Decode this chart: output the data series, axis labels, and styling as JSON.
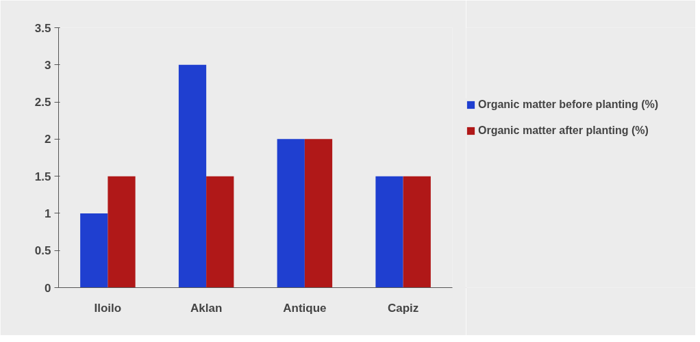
{
  "chart_data": {
    "type": "bar",
    "categories": [
      "Iloilo",
      "Aklan",
      "Antique",
      "Capiz"
    ],
    "series": [
      {
        "name": "Organic matter before planting (%)",
        "color": "#1f3fd0",
        "values": [
          1,
          3,
          2,
          1.5
        ]
      },
      {
        "name": "Organic matter after planting (%)",
        "color": "#b01818",
        "values": [
          1.5,
          1.5,
          2,
          1.5
        ]
      }
    ],
    "ylim": [
      0,
      3.5
    ],
    "yticks": [
      0,
      0.5,
      1,
      1.5,
      2,
      2.5,
      3,
      3.5
    ],
    "legend": "right"
  }
}
